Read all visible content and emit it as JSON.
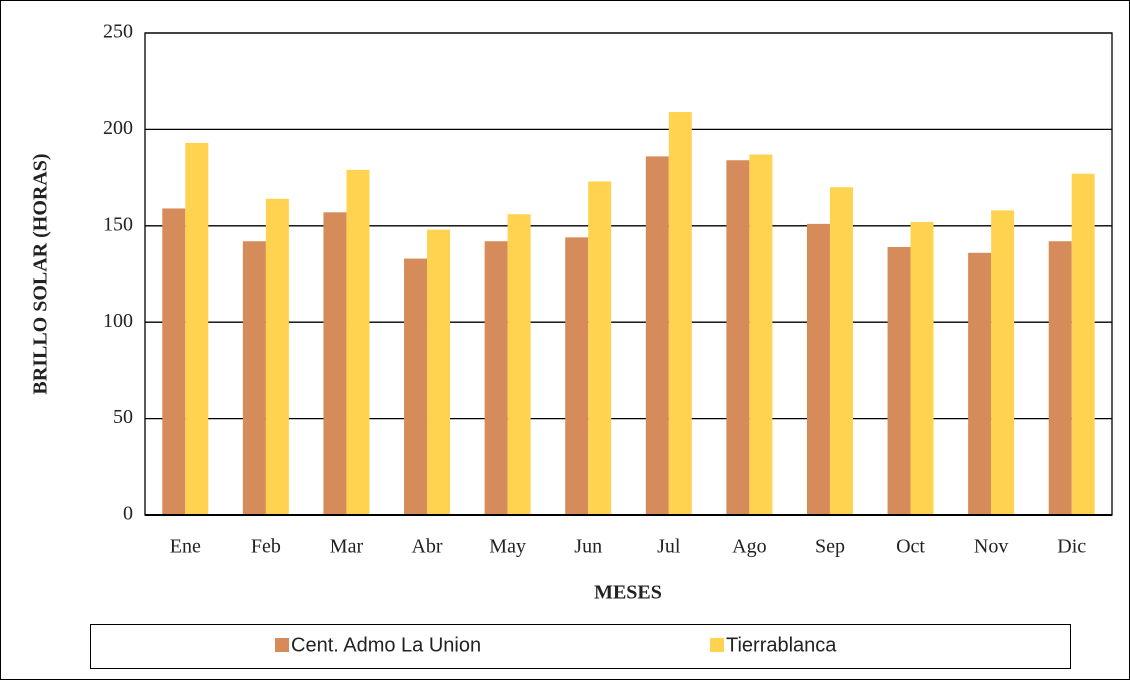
{
  "chart_data": {
    "type": "bar",
    "y_label": "BRILLO SOLAR (HORAS)",
    "x_label": "MESES",
    "categories": [
      "Ene",
      "Feb",
      "Mar",
      "Abr",
      "May",
      "Jun",
      "Jul",
      "Ago",
      "Sep",
      "Oct",
      "Nov",
      "Dic"
    ],
    "series": [
      {
        "name": "Cent. Admo La Union",
        "color": "#d68b5a",
        "values": [
          159,
          142,
          157,
          133,
          142,
          144,
          186,
          184,
          151,
          139,
          136,
          142
        ]
      },
      {
        "name": "Tierrablanca",
        "color": "#ffd34f",
        "values": [
          193,
          164,
          179,
          148,
          156,
          173,
          209,
          187,
          170,
          152,
          158,
          177
        ]
      }
    ],
    "ylim": [
      0,
      250
    ],
    "yticks": [
      0,
      50,
      100,
      150,
      200,
      250
    ],
    "grid": true
  }
}
